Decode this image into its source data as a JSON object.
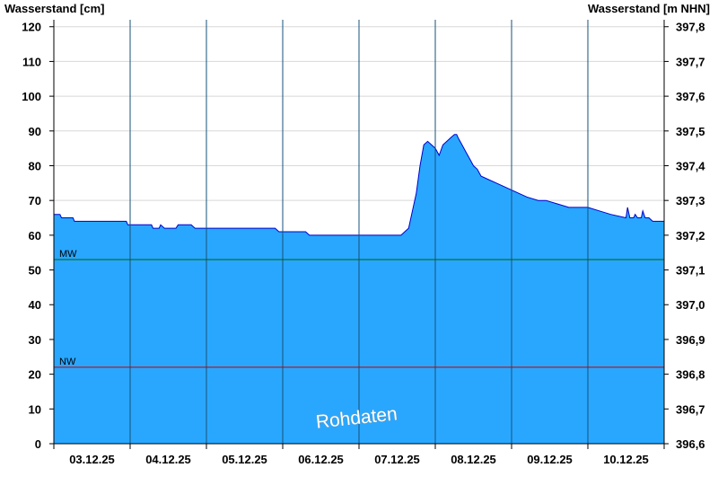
{
  "chart_data": {
    "type": "area",
    "ylabel_left": "Wasserstand [cm]",
    "ylabel_right": "Wasserstand [m NHN]",
    "watermark": "Rohdaten",
    "ylim": [
      0,
      122
    ],
    "yticks": [
      0,
      10,
      20,
      30,
      40,
      50,
      60,
      70,
      80,
      90,
      100,
      110,
      120
    ],
    "yticks_right": [
      "396,6",
      "396,7",
      "396,8",
      "396,9",
      "397,0",
      "397,1",
      "397,2",
      "397,3",
      "397,4",
      "397,5",
      "397,6",
      "397,7",
      "397,8"
    ],
    "xlim_days": [
      0,
      8
    ],
    "x_tick_labels": [
      "03.12.25",
      "04.12.25",
      "05.12.25",
      "06.12.25",
      "07.12.25",
      "08.12.25",
      "09.12.25",
      "10.12.25"
    ],
    "grid": true,
    "reference_lines": [
      {
        "label": "MW",
        "value": 53,
        "color": "#006400"
      },
      {
        "label": "NW",
        "value": 22,
        "color": "#c00000"
      }
    ],
    "fill_color": "#29a7ff",
    "line_color": "#0000cc",
    "series": [
      {
        "x_days": [
          0,
          0.08,
          0.1,
          0.25,
          0.27,
          0.5,
          0.75,
          0.95,
          0.97,
          1.2,
          1.28,
          1.3,
          1.38,
          1.4,
          1.45,
          1.6,
          1.63,
          1.8,
          1.85,
          2.0,
          2.5,
          2.9,
          2.95,
          3.3,
          3.35,
          3.6,
          3.8,
          4.0,
          4.3,
          4.55,
          4.6,
          4.65,
          4.7,
          4.75,
          4.8,
          4.85,
          4.9,
          4.95,
          5.0,
          5.05,
          5.1,
          5.15,
          5.2,
          5.25,
          5.28,
          5.3,
          5.35,
          5.4,
          5.45,
          5.5,
          5.55,
          5.6,
          5.7,
          5.8,
          5.9,
          6.0,
          6.1,
          6.2,
          6.35,
          6.45,
          6.6,
          6.75,
          6.9,
          7.0,
          7.15,
          7.3,
          7.5,
          7.52,
          7.55,
          7.6,
          7.62,
          7.65,
          7.7,
          7.72,
          7.75,
          7.8,
          7.85,
          8.0
        ],
        "values": [
          66,
          66,
          65,
          65,
          64,
          64,
          64,
          64,
          63,
          63,
          63,
          62,
          62,
          63,
          62,
          62,
          63,
          63,
          62,
          62,
          62,
          62,
          61,
          61,
          60,
          60,
          60,
          60,
          60,
          60,
          61,
          62,
          67,
          72,
          80,
          86,
          87,
          86,
          85,
          83,
          86,
          87,
          88,
          89,
          89,
          88,
          86,
          84,
          82,
          80,
          79,
          77,
          76,
          75,
          74,
          73,
          72,
          71,
          70,
          70,
          69,
          68,
          68,
          68,
          67,
          66,
          65,
          68,
          65,
          65,
          66,
          65,
          65,
          67,
          65,
          65,
          64,
          64
        ]
      }
    ]
  }
}
